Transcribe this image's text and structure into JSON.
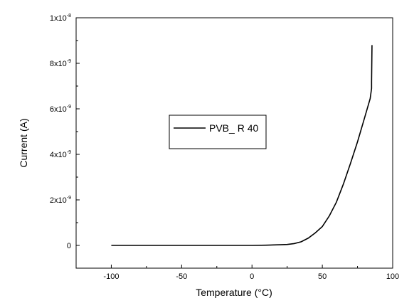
{
  "chart_data": {
    "type": "line",
    "xlabel": "Temperature (°C)",
    "ylabel": "Current (A)",
    "xlim": [
      -125,
      100
    ],
    "ylim": [
      -1e-09,
      1e-08
    ],
    "x_ticks": [
      {
        "value": -100,
        "label": "-100"
      },
      {
        "value": -50,
        "label": "-50"
      },
      {
        "value": 0,
        "label": "0"
      },
      {
        "value": 50,
        "label": "50"
      },
      {
        "value": 100,
        "label": "100"
      }
    ],
    "y_ticks": [
      {
        "value": 0,
        "base": "0",
        "exp": ""
      },
      {
        "value": 2e-09,
        "base": "2x10",
        "exp": "-9"
      },
      {
        "value": 4e-09,
        "base": "4x10",
        "exp": "-9"
      },
      {
        "value": 6e-09,
        "base": "6x10",
        "exp": "-9"
      },
      {
        "value": 8e-09,
        "base": "8x10",
        "exp": "-9"
      },
      {
        "value": 1e-08,
        "base": "1x10",
        "exp": "-8"
      }
    ],
    "grid": false,
    "legend_position": "center-left",
    "series": [
      {
        "name": "PVB_ R 40",
        "color": "#000000",
        "x": [
          -100,
          -50,
          0,
          10,
          20,
          25,
          30,
          35,
          40,
          45,
          50,
          55,
          60,
          65,
          70,
          75,
          80,
          84,
          85,
          85,
          85.3
        ],
        "y": [
          0,
          0,
          0,
          1e-11,
          3e-11,
          4e-11,
          8e-11,
          1.6e-10,
          3.2e-10,
          5.5e-10,
          8.3e-10,
          1.3e-09,
          1.9e-09,
          2.7e-09,
          3.6e-09,
          4.55e-09,
          5.6e-09,
          6.45e-09,
          6.9e-09,
          7.2e-09,
          8.8e-09
        ]
      }
    ]
  }
}
